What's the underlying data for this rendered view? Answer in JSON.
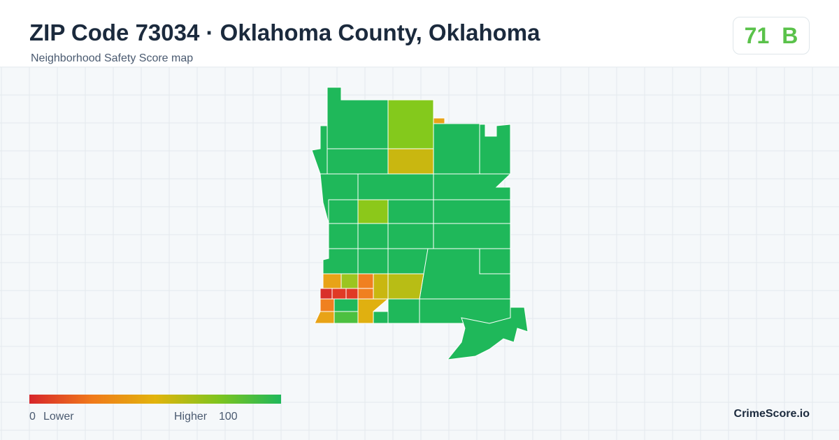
{
  "header": {
    "title": "ZIP Code 73034 · Oklahoma County, Oklahoma",
    "subtitle": "Neighborhood Safety Score map"
  },
  "score": {
    "value": 71,
    "grade": "B"
  },
  "legend": {
    "min": 0,
    "min_label": "Lower",
    "max_label": "Higher",
    "max": 100
  },
  "brand": "CrimeScore.io"
}
